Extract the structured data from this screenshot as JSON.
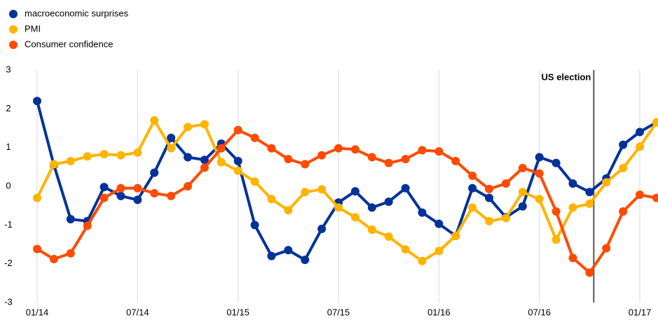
{
  "chart_data": {
    "type": "line",
    "categories": [
      "01/14",
      null,
      null,
      null,
      null,
      null,
      "07/14",
      null,
      null,
      null,
      null,
      null,
      "01/15",
      null,
      null,
      null,
      null,
      null,
      "07/15",
      null,
      null,
      null,
      null,
      null,
      "01/16",
      null,
      null,
      null,
      null,
      null,
      "07/16",
      null,
      null,
      null,
      null,
      null,
      "01/17",
      null
    ],
    "series": [
      {
        "name": "macroeconomic surprises",
        "color": "#003299",
        "values": [
          2.2,
          0.55,
          -0.85,
          -0.9,
          -0.02,
          -0.25,
          -0.35,
          0.35,
          1.25,
          0.75,
          0.68,
          1.1,
          0.65,
          -1.0,
          -1.8,
          -1.65,
          -1.9,
          -1.1,
          -0.42,
          -0.13,
          -0.55,
          -0.4,
          -0.05,
          -0.68,
          -0.97,
          -1.28,
          -0.05,
          -0.3,
          -0.8,
          -0.52,
          0.75,
          0.6,
          0.07,
          -0.15,
          0.2,
          1.07,
          1.4,
          1.65
        ]
      },
      {
        "name": "PMI",
        "color": "#ffb400",
        "values": [
          -0.3,
          0.57,
          0.65,
          0.77,
          0.83,
          0.8,
          0.87,
          1.7,
          0.98,
          1.53,
          1.6,
          0.62,
          0.4,
          0.12,
          -0.33,
          -0.62,
          -0.15,
          -0.08,
          -0.55,
          -0.8,
          -1.12,
          -1.3,
          -1.63,
          -1.93,
          -1.67,
          -1.28,
          -0.55,
          -0.9,
          -0.82,
          -0.15,
          -0.33,
          -1.38,
          -0.55,
          -0.45,
          0.1,
          0.47,
          1.02,
          1.65
        ]
      },
      {
        "name": "Consumer confidence",
        "color": "#ff4b00",
        "values": [
          -1.62,
          -1.88,
          -1.73,
          -1.02,
          -0.3,
          -0.05,
          -0.05,
          -0.18,
          -0.25,
          0.0,
          0.48,
          0.98,
          1.45,
          1.25,
          0.98,
          0.7,
          0.57,
          0.8,
          0.98,
          0.95,
          0.75,
          0.6,
          0.7,
          0.93,
          0.9,
          0.65,
          0.27,
          -0.07,
          0.07,
          0.47,
          0.33,
          -0.65,
          -1.85,
          -2.23,
          -1.6,
          -0.65,
          -0.22,
          -0.3
        ]
      }
    ],
    "ylim": [
      -3,
      3
    ],
    "yticks": [
      -3,
      -2,
      -1,
      0,
      1,
      2,
      3
    ],
    "grid": true,
    "legend": "top-left",
    "annotation": "US election"
  }
}
